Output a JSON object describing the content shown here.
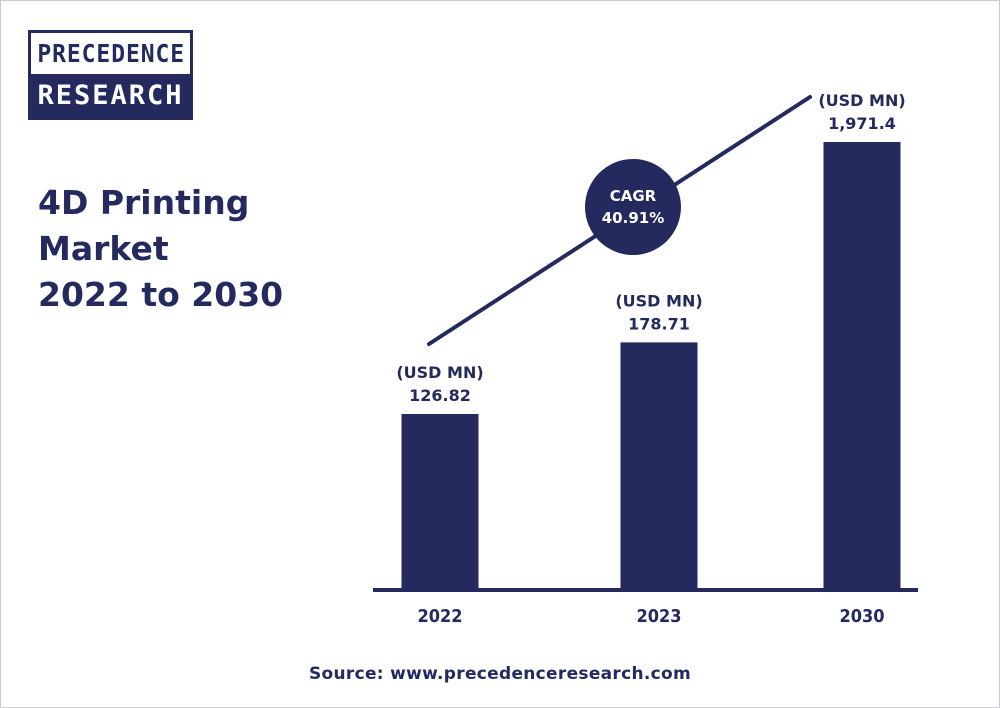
{
  "logo": {
    "line1": "PRECEDENCE",
    "line2": "RESEARCH"
  },
  "title_lines": [
    "4D Printing",
    "Market",
    "2022 to 2030"
  ],
  "cagr": {
    "label": "CAGR",
    "value": "40.91%"
  },
  "source": "Source: www.precedenceresearch.com",
  "colors": {
    "bar": "#24295e",
    "text": "#24295e",
    "background": "#ffffff"
  },
  "chart_data": {
    "type": "bar",
    "categories": [
      "2022",
      "2023",
      "2030"
    ],
    "values": [
      126.82,
      178.71,
      1971.4
    ],
    "value_labels": [
      "126.82",
      "178.71",
      "1,971.4"
    ],
    "unit_label": "(USD MN)",
    "title": "4D Printing Market 2022 to 2030",
    "xlabel": "",
    "ylabel": "",
    "grid": false,
    "legend": "none",
    "trend_line": true,
    "trend_annotation": "CAGR 40.91%"
  }
}
